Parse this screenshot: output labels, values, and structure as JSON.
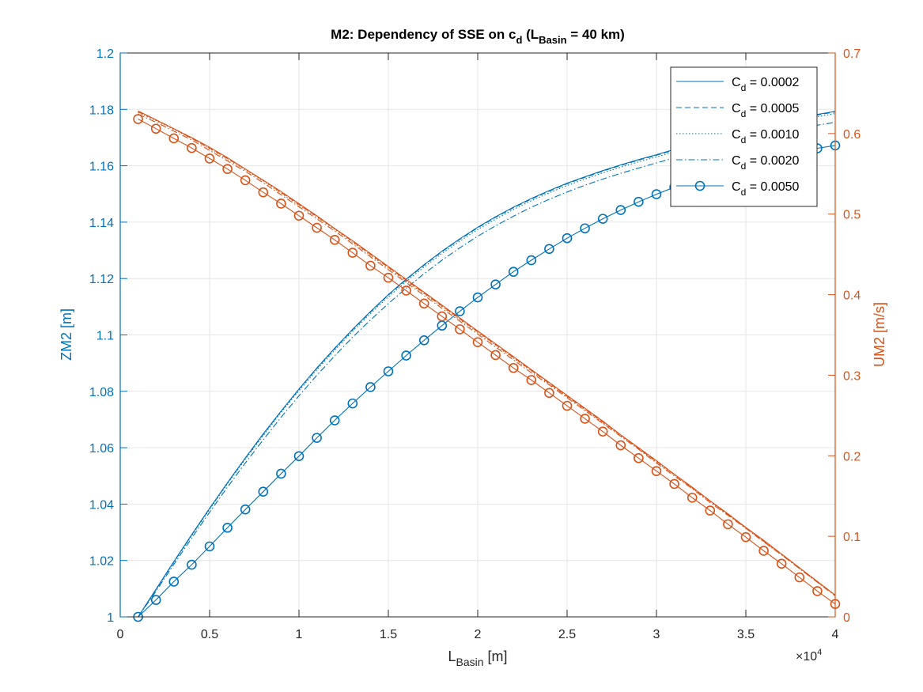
{
  "chart_data": {
    "type": "line",
    "title": {
      "main": "M2: Dependency of SSE on c",
      "main_sub": "d",
      "paren_open": " (L",
      "paren_sub": "Basin",
      "paren_close": " = 40 km)"
    },
    "xlabel": {
      "main": "L",
      "sub": "Basin",
      "unit": " [m]"
    },
    "ylabel_left": "ZM2 [m]",
    "ylabel_right": "UM2 [m/s]",
    "x_exponent_label": {
      "base": "×10",
      "exp": "4"
    },
    "xlim": [
      0,
      40000
    ],
    "ylim_left": [
      1.0,
      1.2
    ],
    "ylim_right": [
      0,
      0.7
    ],
    "xticks": [
      0,
      5000,
      10000,
      15000,
      20000,
      25000,
      30000,
      35000,
      40000
    ],
    "xtick_labels": [
      "0",
      "0.5",
      "1",
      "1.5",
      "2",
      "2.5",
      "3",
      "3.5",
      "4"
    ],
    "yticks_left": [
      1.0,
      1.02,
      1.04,
      1.06,
      1.08,
      1.1,
      1.12,
      1.14,
      1.16,
      1.18,
      1.2
    ],
    "ytick_labels_left": [
      "1",
      "1.02",
      "1.04",
      "1.06",
      "1.08",
      "1.1",
      "1.12",
      "1.14",
      "1.16",
      "1.18",
      "1.2"
    ],
    "yticks_right": [
      0,
      0.1,
      0.2,
      0.3,
      0.4,
      0.5,
      0.6,
      0.7
    ],
    "ytick_labels_right": [
      "0",
      "0.1",
      "0.2",
      "0.3",
      "0.4",
      "0.5",
      "0.6",
      "0.7"
    ],
    "grid": true,
    "legend_position": "top-right",
    "colors": {
      "left_axis": "#0072BD",
      "right_axis": "#D95319",
      "grid": "#e6e6e6",
      "axis": "#262626"
    },
    "x": [
      1000,
      2000,
      3000,
      4000,
      5000,
      6000,
      7000,
      8000,
      9000,
      10000,
      11000,
      12000,
      13000,
      14000,
      15000,
      16000,
      17000,
      18000,
      19000,
      20000,
      21000,
      22000,
      23000,
      24000,
      25000,
      26000,
      27000,
      28000,
      29000,
      30000,
      31000,
      32000,
      33000,
      34000,
      35000,
      36000,
      37000,
      38000,
      39000,
      40000
    ],
    "series": [
      {
        "name": "C_d = 0.0002",
        "legend_main": "C",
        "legend_sub": "d",
        "legend_value": " = 0.0002",
        "axis": "left",
        "dash": "solid",
        "marker": "none",
        "values": [
          1.0,
          1.0098,
          1.0196,
          1.0292,
          1.0385,
          1.0476,
          1.0564,
          1.0649,
          1.073,
          1.0808,
          1.0883,
          1.0953,
          1.102,
          1.1083,
          1.1143,
          1.1198,
          1.1249,
          1.1297,
          1.1341,
          1.1382,
          1.1419,
          1.1453,
          1.1484,
          1.1512,
          1.1538,
          1.1561,
          1.1583,
          1.1603,
          1.1622,
          1.1639,
          1.1658,
          1.1677,
          1.1695,
          1.1712,
          1.1728,
          1.1743,
          1.1757,
          1.177,
          1.1782,
          1.1793
        ]
      },
      {
        "name": "C_d = 0.0005",
        "legend_main": "C",
        "legend_sub": "d",
        "legend_value": " = 0.0005",
        "axis": "left",
        "dash": "dashed",
        "marker": "none",
        "values": [
          1.0,
          1.0097,
          1.0195,
          1.0291,
          1.0384,
          1.0475,
          1.0563,
          1.0647,
          1.0729,
          1.0807,
          1.0881,
          1.0951,
          1.1018,
          1.1081,
          1.1141,
          1.1196,
          1.1247,
          1.1295,
          1.1339,
          1.138,
          1.1417,
          1.1451,
          1.1482,
          1.151,
          1.1536,
          1.1559,
          1.1581,
          1.1601,
          1.162,
          1.1637,
          1.1656,
          1.1675,
          1.1693,
          1.171,
          1.1726,
          1.1741,
          1.1755,
          1.1768,
          1.178,
          1.1791
        ]
      },
      {
        "name": "C_d = 0.0010",
        "legend_main": "C",
        "legend_sub": "d",
        "legend_value": " = 0.0010",
        "axis": "left",
        "dash": "dotted",
        "marker": "none",
        "values": [
          1.0,
          1.0095,
          1.0193,
          1.0288,
          1.0381,
          1.0472,
          1.0559,
          1.0643,
          1.0725,
          1.0802,
          1.0876,
          1.0946,
          1.1013,
          1.1076,
          1.1135,
          1.119,
          1.1241,
          1.1289,
          1.1333,
          1.1374,
          1.1411,
          1.1445,
          1.1476,
          1.1504,
          1.153,
          1.1553,
          1.1575,
          1.1595,
          1.1614,
          1.1631,
          1.165,
          1.1669,
          1.1687,
          1.1704,
          1.172,
          1.1735,
          1.1749,
          1.1762,
          1.1774,
          1.1785
        ]
      },
      {
        "name": "C_d = 0.0020",
        "legend_main": "C",
        "legend_sub": "d",
        "legend_value": " = 0.0020",
        "axis": "left",
        "dash": "dashdot",
        "marker": "none",
        "values": [
          1.0,
          1.0091,
          1.0186,
          1.028,
          1.0371,
          1.046,
          1.0546,
          1.0628,
          1.0708,
          1.0784,
          1.0857,
          1.0926,
          1.0992,
          1.1053,
          1.1111,
          1.1166,
          1.1217,
          1.1265,
          1.1309,
          1.135,
          1.1387,
          1.1421,
          1.1453,
          1.1481,
          1.1507,
          1.1531,
          1.1553,
          1.1573,
          1.1592,
          1.161,
          1.1628,
          1.1646,
          1.1663,
          1.1679,
          1.1694,
          1.1708,
          1.1721,
          1.1733,
          1.1744,
          1.1754
        ]
      },
      {
        "name": "C_d = 0.0050",
        "legend_main": "C",
        "legend_sub": "d",
        "legend_value": " = 0.0050",
        "axis": "left",
        "dash": "solid",
        "marker": "circle",
        "values": [
          1.0,
          1.006,
          1.0125,
          1.0185,
          1.025,
          1.0316,
          1.0381,
          1.0444,
          1.0508,
          1.057,
          1.0635,
          1.0697,
          1.0757,
          1.0815,
          1.0871,
          1.0927,
          1.0981,
          1.1033,
          1.1084,
          1.1133,
          1.1179,
          1.1224,
          1.1265,
          1.1305,
          1.1343,
          1.1378,
          1.1412,
          1.1443,
          1.1472,
          1.1499,
          1.1524,
          1.1547,
          1.1569,
          1.1589,
          1.1607,
          1.1623,
          1.1637,
          1.165,
          1.1662,
          1.1672
        ]
      },
      {
        "name": "UM2 C_d = 0.0002",
        "axis": "right",
        "dash": "solid",
        "marker": "none",
        "values": [
          0.628,
          0.617,
          0.606,
          0.595,
          0.583,
          0.57,
          0.556,
          0.542,
          0.528,
          0.513,
          0.498,
          0.482,
          0.467,
          0.451,
          0.435,
          0.419,
          0.403,
          0.387,
          0.371,
          0.355,
          0.339,
          0.323,
          0.307,
          0.291,
          0.275,
          0.259,
          0.243,
          0.226,
          0.21,
          0.194,
          0.177,
          0.161,
          0.144,
          0.128,
          0.111,
          0.095,
          0.078,
          0.061,
          0.044,
          0.027
        ]
      },
      {
        "name": "UM2 C_d = 0.0005",
        "axis": "right",
        "dash": "dashed",
        "marker": "none",
        "values": [
          0.627,
          0.617,
          0.606,
          0.594,
          0.582,
          0.569,
          0.556,
          0.542,
          0.527,
          0.512,
          0.497,
          0.482,
          0.466,
          0.45,
          0.434,
          0.418,
          0.402,
          0.386,
          0.37,
          0.354,
          0.338,
          0.322,
          0.306,
          0.29,
          0.274,
          0.258,
          0.242,
          0.226,
          0.209,
          0.193,
          0.177,
          0.16,
          0.144,
          0.127,
          0.111,
          0.094,
          0.078,
          0.061,
          0.044,
          0.027
        ]
      },
      {
        "name": "UM2 C_d = 0.0010",
        "axis": "right",
        "dash": "dotted",
        "marker": "none",
        "values": [
          0.626,
          0.616,
          0.605,
          0.594,
          0.581,
          0.568,
          0.555,
          0.541,
          0.526,
          0.511,
          0.496,
          0.481,
          0.465,
          0.449,
          0.433,
          0.417,
          0.401,
          0.385,
          0.369,
          0.353,
          0.337,
          0.321,
          0.305,
          0.289,
          0.273,
          0.257,
          0.241,
          0.225,
          0.209,
          0.192,
          0.176,
          0.16,
          0.143,
          0.127,
          0.11,
          0.094,
          0.077,
          0.06,
          0.043,
          0.027
        ]
      },
      {
        "name": "UM2 C_d = 0.0020",
        "axis": "right",
        "dash": "dashdot",
        "marker": "none",
        "values": [
          0.624,
          0.614,
          0.603,
          0.592,
          0.579,
          0.566,
          0.553,
          0.539,
          0.524,
          0.509,
          0.494,
          0.479,
          0.463,
          0.447,
          0.431,
          0.415,
          0.399,
          0.383,
          0.367,
          0.351,
          0.335,
          0.319,
          0.303,
          0.288,
          0.272,
          0.256,
          0.24,
          0.224,
          0.208,
          0.191,
          0.175,
          0.159,
          0.142,
          0.126,
          0.11,
          0.093,
          0.077,
          0.06,
          0.043,
          0.026
        ]
      },
      {
        "name": "UM2 C_d = 0.0050",
        "axis": "right",
        "dash": "solid",
        "marker": "circle",
        "values": [
          0.618,
          0.606,
          0.594,
          0.582,
          0.569,
          0.556,
          0.542,
          0.527,
          0.513,
          0.498,
          0.483,
          0.468,
          0.452,
          0.436,
          0.421,
          0.405,
          0.389,
          0.373,
          0.357,
          0.341,
          0.325,
          0.309,
          0.294,
          0.278,
          0.262,
          0.246,
          0.23,
          0.213,
          0.197,
          0.181,
          0.165,
          0.148,
          0.132,
          0.115,
          0.099,
          0.082,
          0.066,
          0.049,
          0.032,
          0.016
        ]
      }
    ]
  }
}
